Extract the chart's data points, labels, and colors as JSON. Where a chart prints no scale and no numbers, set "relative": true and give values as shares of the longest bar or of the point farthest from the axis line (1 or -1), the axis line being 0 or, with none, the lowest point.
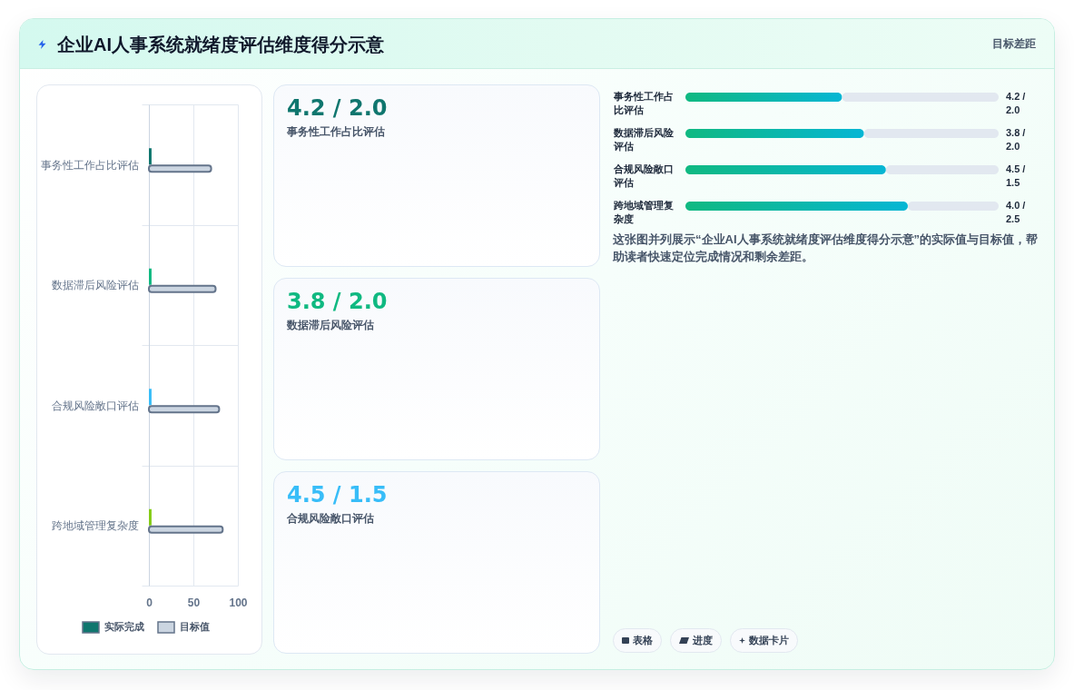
{
  "chart_data": [
    {
      "type": "other",
      "title": "企业AI人事系统就绪度评估维度得分示意",
      "annotations": [
        "目标差距"
      ]
    },
    {
      "type": "bar",
      "orientation": "horizontal",
      "categories": [
        "事务性工作占比评估",
        "数据滞后风险评估",
        "合规风险敞口评估",
        "跨地域管理复杂度"
      ],
      "series": [
        {
          "name": "实际完成",
          "color": "#0f766e",
          "colors": [
            "#0f766e",
            "#10b981",
            "#38bdf8",
            "#84cc16"
          ],
          "values": [
            3,
            3,
            3,
            3
          ]
        },
        {
          "name": "目标值",
          "color": "#cbd5e1",
          "values": [
            70,
            75,
            79,
            83
          ]
        }
      ],
      "xlim": [
        0,
        100
      ],
      "xticks": [
        0,
        50,
        100
      ],
      "grid": true,
      "legend": "bottom"
    },
    {
      "type": "other",
      "title": "4.2 / 2.0",
      "subtitle": "事务性工作占比评估",
      "color": "#0f766e"
    },
    {
      "type": "other",
      "title": "3.8 / 2.0",
      "subtitle": "数据滞后风险评估",
      "color": "#10b981"
    },
    {
      "type": "other",
      "title": "4.5 / 1.5",
      "subtitle": "合规风险敞口评估",
      "color": "#38bdf8"
    },
    {
      "type": "bar",
      "orientation": "horizontal",
      "stacked": true,
      "relative": true,
      "categories": [
        "事务性工作占比评估",
        "数据滞后风险评估",
        "合规风险敞口评估",
        "跨地域管理复杂度"
      ],
      "series": [
        {
          "color": "#10b981",
          "values": [
            0.5,
            0.57,
            0.64,
            0.71
          ]
        },
        {
          "color": "#e2e8f0",
          "values": [
            0.5,
            0.43,
            0.36,
            0.29
          ]
        }
      ],
      "annotations": [
        "4.2 / 2.0",
        "3.8 / 2.0",
        "4.5 / 1.5",
        "4.0 / 2.5"
      ]
    },
    {
      "type": "other",
      "annotations": [
        "这张图并列展示“企业AI人事系统就绪度评估维度得分示意”的实际值与目标值，帮助读者快速定位完成情况和剩余差距。",
        "表格",
        "进度",
        "数据卡片"
      ]
    }
  ]
}
